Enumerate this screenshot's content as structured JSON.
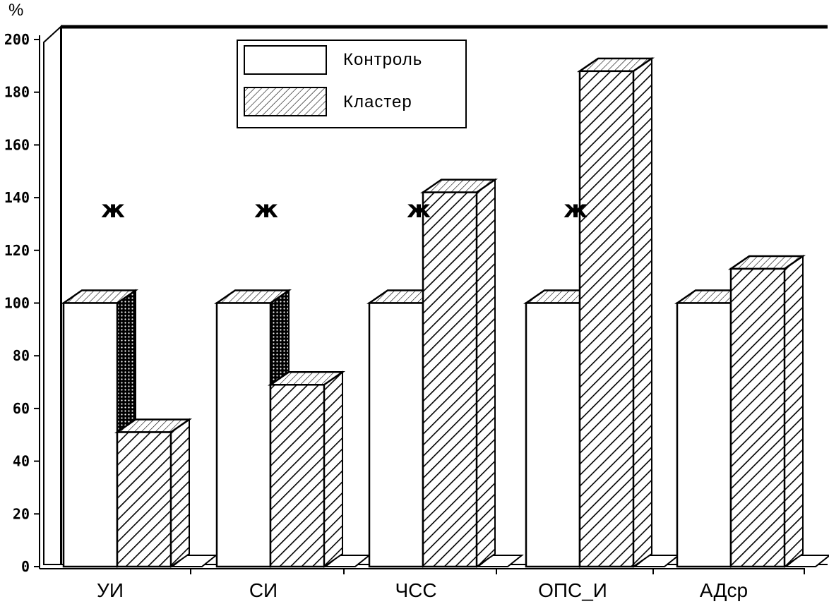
{
  "chart_data": {
    "type": "bar",
    "unit_label": "%",
    "categories": [
      "УИ",
      "СИ",
      "ЧСС",
      "ОПС_И",
      "АДср"
    ],
    "series": [
      {
        "name": "Контроль",
        "values": [
          100,
          100,
          100,
          100,
          100
        ],
        "pattern": "plain"
      },
      {
        "name": "Кластер",
        "values": [
          51,
          69,
          142,
          188,
          113
        ],
        "pattern": "hatched"
      }
    ],
    "significance_marker": "ж",
    "significant": [
      true,
      true,
      true,
      true,
      false
    ],
    "ylim": [
      0,
      200
    ],
    "yticks": [
      "0",
      "20",
      "40",
      "60",
      "80",
      "100",
      "120",
      "140",
      "160",
      "180",
      "200"
    ],
    "xlabel": "",
    "ylabel": "",
    "title": "",
    "legend_position": "top-center",
    "grid": false,
    "colors": {
      "fill": "#ffffff",
      "stroke": "#000000"
    }
  }
}
